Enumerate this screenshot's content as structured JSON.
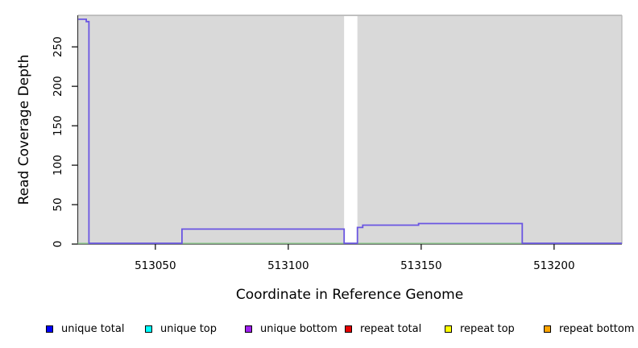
{
  "figure": {
    "xlabel": "Coordinate in Reference Genome",
    "ylabel": "Read Coverage Depth"
  },
  "legend": {
    "items": [
      {
        "label": "unique total",
        "color": "#0000ff"
      },
      {
        "label": "unique top",
        "color": "#00ffff"
      },
      {
        "label": "unique bottom",
        "color": "#a020f0"
      },
      {
        "label": "repeat total",
        "color": "#e60000"
      },
      {
        "label": "repeat top",
        "color": "#ffff00"
      },
      {
        "label": "repeat bottom",
        "color": "#ffa500"
      }
    ]
  },
  "chart_data": {
    "type": "line",
    "title": "",
    "xlabel": "Coordinate in Reference Genome",
    "ylabel": "Read Coverage Depth",
    "xlim": [
      513020.8,
      513225.5
    ],
    "ylim": [
      0,
      290
    ],
    "x_ticks": [
      513050,
      513100,
      513150,
      513200
    ],
    "x_tick_labels": [
      "513050",
      "513100",
      "513150",
      "513200"
    ],
    "y_ticks": [
      0,
      50,
      100,
      150,
      200,
      250
    ],
    "y_tick_labels": [
      "0",
      "50",
      "100",
      "150",
      "200",
      "250"
    ],
    "grid": false,
    "legend_position": "bottom",
    "panel_background": "#d9d9d9",
    "gap_region": {
      "x_start": 513121,
      "x_end": 513126,
      "color": "#ffffff"
    },
    "series": [
      {
        "name": "zero baseline",
        "color": "#98d098",
        "points": [
          [
            513020.8,
            0
          ],
          [
            513225.5,
            0
          ]
        ]
      },
      {
        "name": "unique bottom coverage",
        "color": "#6a55e2",
        "points": [
          [
            513021,
            285
          ],
          [
            513024,
            285
          ],
          [
            513024,
            282
          ],
          [
            513025,
            282
          ],
          [
            513025,
            0
          ],
          [
            513060,
            0
          ],
          [
            513060,
            19
          ],
          [
            513121,
            19
          ],
          [
            513121,
            0
          ],
          [
            513126,
            0
          ],
          [
            513126,
            21
          ],
          [
            513128,
            21
          ],
          [
            513128,
            24
          ],
          [
            513149,
            24
          ],
          [
            513149,
            26
          ],
          [
            513188,
            26
          ],
          [
            513188,
            0
          ],
          [
            513226,
            0
          ]
        ]
      }
    ]
  }
}
